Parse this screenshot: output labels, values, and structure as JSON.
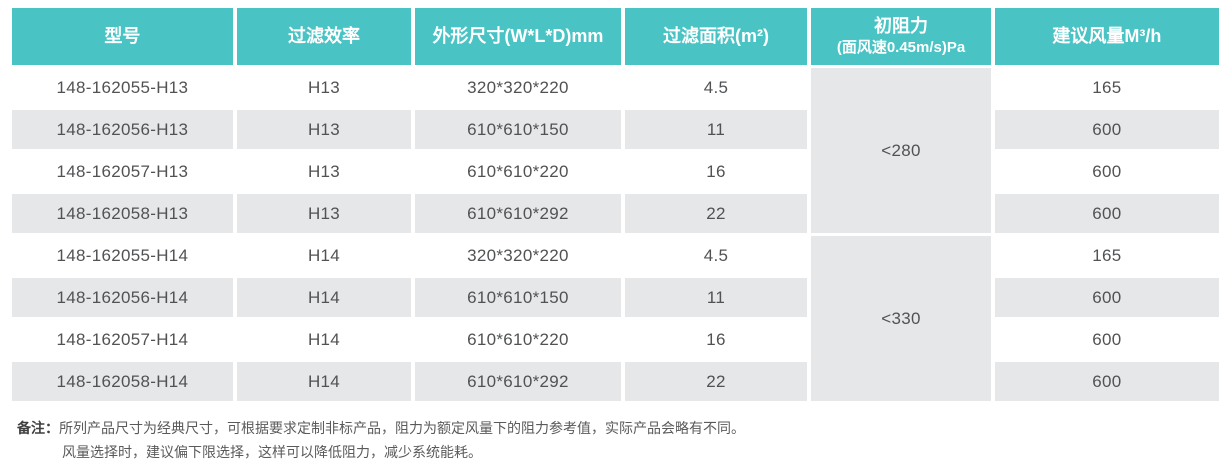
{
  "table": {
    "columns": [
      {
        "label": "型号"
      },
      {
        "label": "过滤效率"
      },
      {
        "label": "外形尺寸(W*L*D)mm"
      },
      {
        "label": "过滤面积(m²)"
      },
      {
        "label": "初阻力",
        "sublabel": "(面风速0.45m/s)Pa"
      },
      {
        "label": "建议风量M³/h"
      }
    ],
    "groups": [
      {
        "resistance": "<280",
        "rows": [
          {
            "model": "148-162055-H13",
            "efficiency": "H13",
            "dimensions": "320*320*220",
            "area": "4.5",
            "airflow": "165"
          },
          {
            "model": "148-162056-H13",
            "efficiency": "H13",
            "dimensions": "610*610*150",
            "area": "11",
            "airflow": "600"
          },
          {
            "model": "148-162057-H13",
            "efficiency": "H13",
            "dimensions": "610*610*220",
            "area": "16",
            "airflow": "600"
          },
          {
            "model": "148-162058-H13",
            "efficiency": "H13",
            "dimensions": "610*610*292",
            "area": "22",
            "airflow": "600"
          }
        ]
      },
      {
        "resistance": "<330",
        "rows": [
          {
            "model": "148-162055-H14",
            "efficiency": "H14",
            "dimensions": "320*320*220",
            "area": "4.5",
            "airflow": "165"
          },
          {
            "model": "148-162056-H14",
            "efficiency": "H14",
            "dimensions": "610*610*150",
            "area": "11",
            "airflow": "600"
          },
          {
            "model": "148-162057-H14",
            "efficiency": "H14",
            "dimensions": "610*610*220",
            "area": "16",
            "airflow": "600"
          },
          {
            "model": "148-162058-H14",
            "efficiency": "H14",
            "dimensions": "610*610*292",
            "area": "22",
            "airflow": "600"
          }
        ]
      }
    ]
  },
  "notes": {
    "label": "备注：",
    "line1": "所列产品尺寸为经典尺寸，可根据要求定制非标产品，阻力为额定风量下的阻力参考值，实际产品会略有不同。",
    "line2": "风量选择时，建议偏下限选择，这样可以降低阻力，减少系统能耗。"
  },
  "colors": {
    "header_bg": "#49c3c4",
    "header_text": "#ffffff",
    "row_alt_bg": "#e6e7e8",
    "body_text": "#505254"
  }
}
